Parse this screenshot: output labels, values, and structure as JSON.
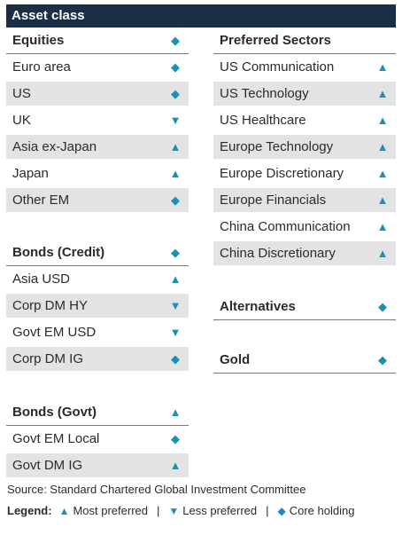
{
  "header": {
    "title": "Asset class"
  },
  "symbols": {
    "up": "▲",
    "down": "▼",
    "diamond": "◆"
  },
  "left": {
    "equities": {
      "title": "Equities",
      "title_sym": "◆",
      "rows": [
        {
          "label": "Euro area",
          "sym": "◆"
        },
        {
          "label": "US",
          "sym": "◆"
        },
        {
          "label": "UK",
          "sym": "▼"
        },
        {
          "label": "Asia ex-Japan",
          "sym": "▲"
        },
        {
          "label": "Japan",
          "sym": "▲"
        },
        {
          "label": "Other EM",
          "sym": "◆"
        }
      ]
    },
    "bonds_credit": {
      "title": "Bonds (Credit)",
      "title_sym": "◆",
      "rows": [
        {
          "label": "Asia USD",
          "sym": "▲"
        },
        {
          "label": "Corp DM HY",
          "sym": "▼"
        },
        {
          "label": "Govt EM USD",
          "sym": "▼"
        },
        {
          "label": "Corp DM IG",
          "sym": "◆"
        }
      ]
    },
    "bonds_govt": {
      "title": "Bonds (Govt)",
      "title_sym": "▲",
      "rows": [
        {
          "label": "Govt EM Local",
          "sym": "◆"
        },
        {
          "label": "Govt DM IG",
          "sym": "▲"
        }
      ]
    }
  },
  "right": {
    "preferred": {
      "title": "Preferred Sectors",
      "rows": [
        {
          "label": "US Communication",
          "sym": "▲"
        },
        {
          "label": "US Technology",
          "sym": "▲"
        },
        {
          "label": "US Healthcare",
          "sym": "▲"
        },
        {
          "label": "Europe Technology",
          "sym": "▲"
        },
        {
          "label": "Europe Discretionary",
          "sym": "▲"
        },
        {
          "label": "Europe Financials",
          "sym": "▲"
        },
        {
          "label": "China Communication",
          "sym": "▲"
        },
        {
          "label": "China Discretionary",
          "sym": "▲"
        }
      ]
    },
    "alternatives": {
      "title": "Alternatives",
      "sym": "◆"
    },
    "gold": {
      "title": "Gold",
      "sym": "◆"
    }
  },
  "source": "Source: Standard Chartered Global Investment Committee",
  "legend": {
    "title": "Legend:",
    "most": "Most preferred",
    "less": "Less preferred",
    "core": "Core holding",
    "sep": "|"
  },
  "colors": {
    "header_bg": "#1c2e45",
    "symbol": "#1a8fb8",
    "shade": "#e3e3e3"
  }
}
